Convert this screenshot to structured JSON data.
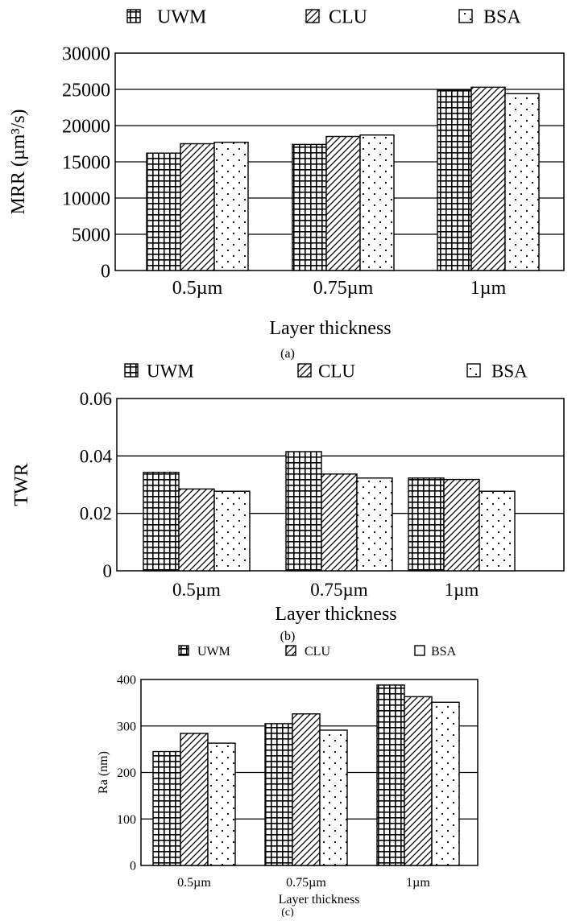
{
  "chart_data": [
    {
      "type": "bar",
      "panel_label": "(a)",
      "categories": [
        "0.5µm",
        "0.75µm",
        "1µm"
      ],
      "series": [
        {
          "name": "UWM",
          "pattern": "grid",
          "values": [
            16200,
            17400,
            24900
          ]
        },
        {
          "name": "CLU",
          "pattern": "hatch",
          "values": [
            17500,
            18500,
            25300
          ]
        },
        {
          "name": "BSA",
          "pattern": "dots",
          "values": [
            17700,
            18700,
            24400
          ]
        }
      ],
      "xlabel": "Layer thickness",
      "ylabel": "MRR (µm³/s)",
      "ylim": [
        0,
        30000
      ],
      "yticks": [
        0,
        5000,
        10000,
        15000,
        20000,
        25000,
        30000
      ],
      "grid": true,
      "legend": "top"
    },
    {
      "type": "bar",
      "panel_label": "(b)",
      "categories": [
        "0.5µm",
        "0.75µm",
        "1µm"
      ],
      "series": [
        {
          "name": "UWM",
          "pattern": "grid",
          "values": [
            0.0343,
            0.0415,
            0.0323
          ]
        },
        {
          "name": "CLU",
          "pattern": "hatch",
          "values": [
            0.0285,
            0.0337,
            0.0318
          ]
        },
        {
          "name": "BSA",
          "pattern": "dots",
          "values": [
            0.0277,
            0.0323,
            0.0277
          ]
        }
      ],
      "xlabel": "Layer thickness",
      "ylabel": "TWR",
      "ylim": [
        0,
        0.06
      ],
      "yticks": [
        0,
        0.02,
        0.04,
        0.06
      ],
      "grid": true,
      "legend": "top"
    },
    {
      "type": "bar",
      "panel_label": "(c)",
      "categories": [
        "0.5µm",
        "0.75µm",
        "1µm"
      ],
      "series": [
        {
          "name": "UWM",
          "pattern": "grid",
          "values": [
            245,
            305,
            388
          ]
        },
        {
          "name": "CLU",
          "pattern": "hatch",
          "values": [
            284,
            326,
            363
          ]
        },
        {
          "name": "BSA",
          "pattern": "dots",
          "values": [
            263,
            291,
            351
          ]
        }
      ],
      "xlabel": "Layer thickness",
      "ylabel": "Ra (nm)",
      "ylim": [
        0,
        400
      ],
      "yticks": [
        0,
        100,
        200,
        300,
        400
      ],
      "grid": true,
      "legend": "top"
    }
  ]
}
